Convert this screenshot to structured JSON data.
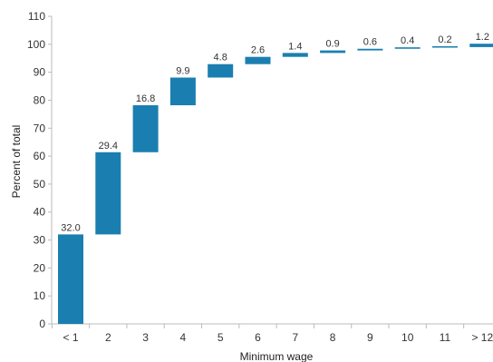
{
  "chart_data": {
    "type": "bar",
    "subtype": "waterfall",
    "categories": [
      "< 1",
      "2",
      "3",
      "4",
      "5",
      "6",
      "7",
      "8",
      "9",
      "10",
      "11",
      "> 12"
    ],
    "values": [
      32.0,
      29.4,
      16.8,
      9.9,
      4.8,
      2.6,
      1.4,
      0.9,
      0.6,
      0.4,
      0.2,
      1.2
    ],
    "value_labels": [
      "32.0",
      "29.4",
      "16.8",
      "9.9",
      "4.8",
      "2.6",
      "1.4",
      "0.9",
      "0.6",
      "0.4",
      "0.2",
      "1.2"
    ],
    "xlabel": "Minimum wage",
    "ylabel": "Percent of total",
    "ylim": [
      0,
      110
    ],
    "yticks": [
      0,
      10,
      20,
      30,
      40,
      50,
      60,
      70,
      80,
      90,
      100,
      110
    ],
    "grid": false,
    "bar_color": "#1a7fb0"
  }
}
